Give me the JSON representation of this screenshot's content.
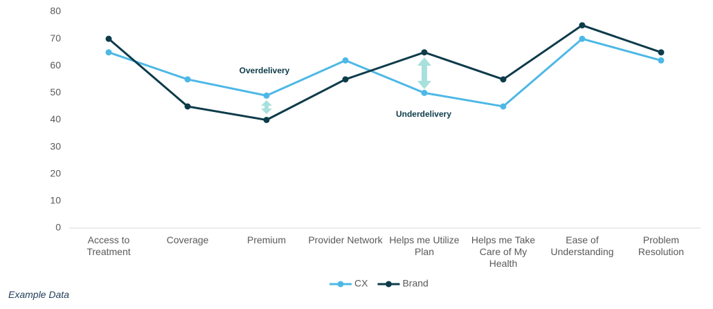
{
  "chart_data": {
    "type": "line",
    "categories": [
      "Access to Treatment",
      "Coverage",
      "Premium",
      "Provider Network",
      "Helps me Utilize Plan",
      "Helps me Take Care of My Health",
      "Ease of Understanding",
      "Problem Resolution"
    ],
    "series": [
      {
        "name": "CX",
        "color": "#4db8e6",
        "values": [
          65,
          55,
          49,
          62,
          50,
          45,
          70,
          62
        ]
      },
      {
        "name": "Brand",
        "color": "#0d3b4a",
        "values": [
          70,
          45,
          40,
          55,
          65,
          55,
          75,
          65
        ]
      }
    ],
    "ylim": [
      0,
      80
    ],
    "yticks": [
      0,
      10,
      20,
      30,
      40,
      50,
      60,
      70,
      80
    ],
    "grid": false,
    "legend": "bottom",
    "annotations": [
      "Overdelivery",
      "Underdelivery"
    ],
    "footnote": "Example Data"
  }
}
